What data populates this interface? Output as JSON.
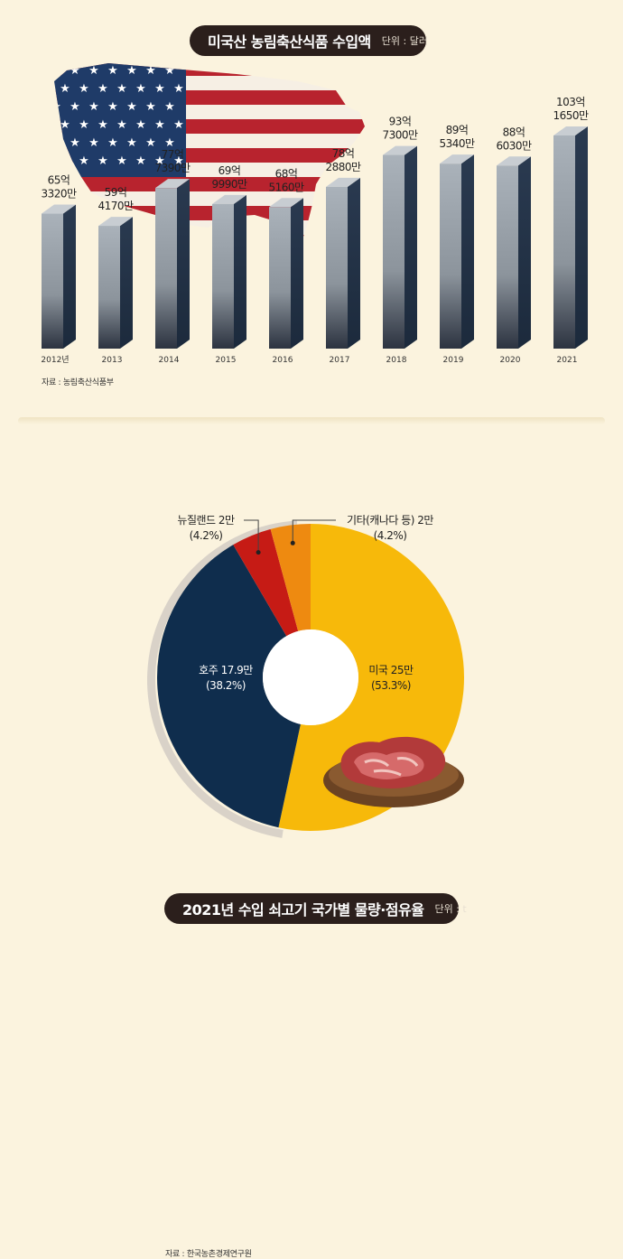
{
  "bar_section": {
    "title": "미국산 농림축산식품 수입액",
    "unit": "단위 : 달러",
    "source": "자료 : 농림축산식품부"
  },
  "donut_section": {
    "title": "2021년 수입 쇠고기 국가별 물량·점유율",
    "unit": "단위 : t",
    "source": "자료 : 한국농촌경제연구원"
  },
  "chart_data": [
    {
      "type": "bar",
      "title": "미국산 농림축산식품 수입액",
      "unit": "단위 : 달러",
      "categories": [
        "2012년",
        "2013",
        "2014",
        "2015",
        "2016",
        "2017",
        "2018",
        "2019",
        "2020",
        "2021"
      ],
      "values": [
        6533200000,
        5941700000,
        7773900000,
        6999900000,
        6851600000,
        7828800000,
        9373000000,
        8953400000,
        8860300000,
        10316500000
      ],
      "value_labels": [
        [
          "65억",
          "3320만"
        ],
        [
          "59억",
          "4170만"
        ],
        [
          "77억",
          "7390만"
        ],
        [
          "69억",
          "9990만"
        ],
        [
          "68억",
          "5160만"
        ],
        [
          "78억",
          "2880만"
        ],
        [
          "93억",
          "7300만"
        ],
        [
          "89억",
          "5340만"
        ],
        [
          "88억",
          "6030만"
        ],
        [
          "103억",
          "1650만"
        ]
      ],
      "colors": {
        "bar_front": "#8c949c",
        "bar_side": "#1c2a3c"
      }
    },
    {
      "type": "pie",
      "donut": true,
      "title": "2021년 수입 쇠고기 국가별 물량·점유율",
      "unit": "단위 : t",
      "slices": [
        {
          "label": "미국 25만",
          "percent_label": "(53.3%)",
          "value": 53.3,
          "color": "#f7b90a"
        },
        {
          "label": "호주 17.9만",
          "percent_label": "(38.2%)",
          "value": 38.2,
          "color": "#0f2d4d"
        },
        {
          "label": "뉴질랜드 2만",
          "percent_label": "(4.2%)",
          "value": 4.2,
          "color": "#c61b15"
        },
        {
          "label": "기타(캐나다 등) 2만",
          "percent_label": "(4.2%)",
          "value": 4.2,
          "color": "#ee8a10"
        }
      ]
    }
  ]
}
